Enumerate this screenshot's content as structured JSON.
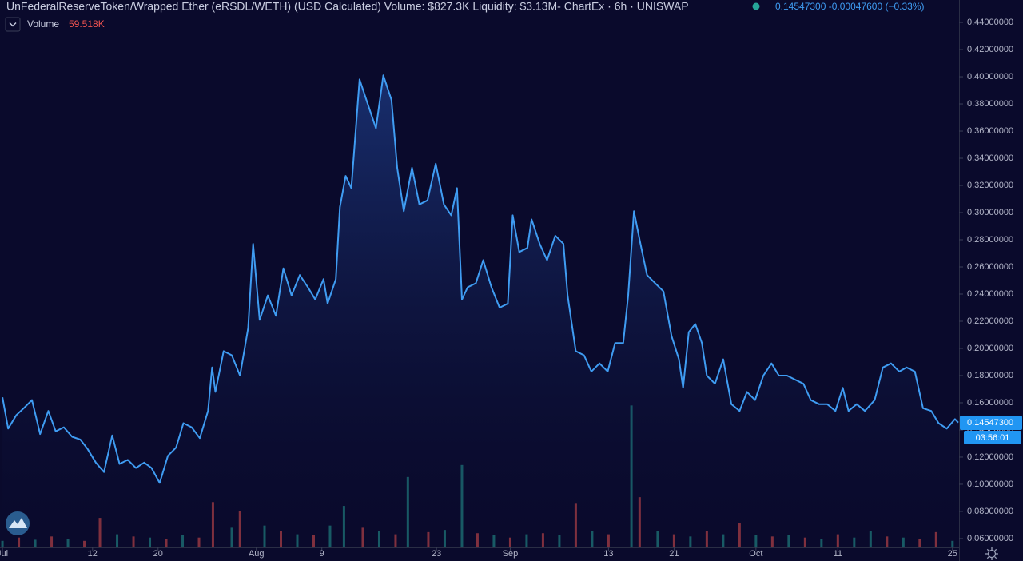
{
  "chart_data": {
    "type": "area",
    "title": "UnFederalReserveToken/Wrapped Ether (eRSDL/WETH) (USD Calculated) Volume: $827.3K Liquidity: $3.13M- ChartEx · 6h · UNISWAP",
    "last": "0.14547300",
    "change": "-0.00047600",
    "change_pct": "(−0.33%)",
    "countdown": "03:56:01",
    "xlim": [
      -0.3,
      116.8
    ],
    "xticks": [
      {
        "value": 0,
        "label": "Jul"
      },
      {
        "value": 11,
        "label": "12"
      },
      {
        "value": 19,
        "label": "20"
      },
      {
        "value": 31,
        "label": "Aug"
      },
      {
        "value": 39,
        "label": "9"
      },
      {
        "value": 53,
        "label": "23"
      },
      {
        "value": 62,
        "label": "Sep"
      },
      {
        "value": 74,
        "label": "13"
      },
      {
        "value": 82,
        "label": "21"
      },
      {
        "value": 92,
        "label": "Oct"
      },
      {
        "value": 102,
        "label": "11"
      },
      {
        "value": 116,
        "label": "25"
      }
    ],
    "ylim": [
      0.0535,
      0.4565
    ],
    "yticks": [
      {
        "value": 0.06,
        "label": "0.06000000"
      },
      {
        "value": 0.08,
        "label": "0.08000000"
      },
      {
        "value": 0.1,
        "label": "0.10000000"
      },
      {
        "value": 0.12,
        "label": "0.12000000"
      },
      {
        "value": 0.14,
        "label": "0.14000000"
      },
      {
        "value": 0.16,
        "label": "0.16000000"
      },
      {
        "value": 0.18,
        "label": "0.18000000"
      },
      {
        "value": 0.2,
        "label": "0.20000000"
      },
      {
        "value": 0.22,
        "label": "0.22000000"
      },
      {
        "value": 0.24,
        "label": "0.24000000"
      },
      {
        "value": 0.26,
        "label": "0.26000000"
      },
      {
        "value": 0.28,
        "label": "0.28000000"
      },
      {
        "value": 0.3,
        "label": "0.30000000"
      },
      {
        "value": 0.32,
        "label": "0.32000000"
      },
      {
        "value": 0.34,
        "label": "0.34000000"
      },
      {
        "value": 0.36,
        "label": "0.36000000"
      },
      {
        "value": 0.38,
        "label": "0.38000000"
      },
      {
        "value": 0.4,
        "label": "0.40000000"
      },
      {
        "value": 0.42,
        "label": "0.42000000"
      },
      {
        "value": 0.44,
        "label": "0.44000000"
      }
    ],
    "series": [
      {
        "color": "#3f9cf2",
        "x": [
          0,
          0.7,
          1.7,
          2.6,
          3.6,
          4.6,
          5.6,
          6.5,
          7.5,
          8.5,
          9.5,
          10.4,
          11.4,
          12.4,
          13.4,
          14.3,
          15.3,
          16.3,
          17.3,
          18.2,
          19.2,
          20.2,
          21.2,
          22.1,
          23.1,
          24.1,
          25.1,
          25.6,
          26,
          27,
          28,
          29,
          30,
          30.6,
          31.4,
          32.4,
          33.4,
          34.3,
          35.3,
          36.3,
          37.3,
          38.2,
          39.2,
          39.7,
          40.7,
          41.2,
          41.9,
          42.6,
          43.6,
          44.6,
          45.6,
          46.5,
          47.5,
          48.2,
          49,
          50,
          50.9,
          51.9,
          52.9,
          53.9,
          54.8,
          55.5,
          56.1,
          56.8,
          57.8,
          58.7,
          59.7,
          60.7,
          61.7,
          62.3,
          63.1,
          64.1,
          64.6,
          65.6,
          66.5,
          67.5,
          68.5,
          69,
          70,
          71,
          71.9,
          72.9,
          73.9,
          74.8,
          75.8,
          76.4,
          77.1,
          77.8,
          78.7,
          79.7,
          80.7,
          81.7,
          82.6,
          83.1,
          83.8,
          84.6,
          85.4,
          86,
          87,
          88,
          89,
          90,
          90.9,
          91.9,
          92.9,
          93.9,
          94.8,
          95.8,
          96.8,
          97.8,
          98.7,
          99.7,
          100.7,
          101.7,
          102.6,
          103.3,
          104.3,
          105.3,
          106.5,
          107.5,
          108.5,
          109.5,
          110.4,
          111.4,
          112.4,
          113.4,
          114.3,
          115.3,
          116.3,
          116.7
        ],
        "values": [
          0.164,
          0.141,
          0.151,
          0.156,
          0.162,
          0.137,
          0.154,
          0.139,
          0.142,
          0.135,
          0.133,
          0.126,
          0.116,
          0.109,
          0.136,
          0.115,
          0.118,
          0.112,
          0.116,
          0.112,
          0.101,
          0.121,
          0.127,
          0.145,
          0.142,
          0.134,
          0.154,
          0.186,
          0.168,
          0.198,
          0.195,
          0.18,
          0.215,
          0.277,
          0.221,
          0.239,
          0.224,
          0.259,
          0.239,
          0.254,
          0.245,
          0.236,
          0.251,
          0.233,
          0.251,
          0.304,
          0.327,
          0.318,
          0.398,
          0.38,
          0.362,
          0.401,
          0.383,
          0.333,
          0.301,
          0.333,
          0.306,
          0.309,
          0.336,
          0.306,
          0.298,
          0.318,
          0.236,
          0.245,
          0.248,
          0.265,
          0.245,
          0.23,
          0.233,
          0.298,
          0.271,
          0.274,
          0.295,
          0.277,
          0.265,
          0.283,
          0.277,
          0.239,
          0.198,
          0.195,
          0.183,
          0.189,
          0.183,
          0.204,
          0.204,
          0.239,
          0.301,
          0.28,
          0.254,
          0.248,
          0.242,
          0.209,
          0.192,
          0.171,
          0.212,
          0.218,
          0.204,
          0.18,
          0.174,
          0.192,
          0.159,
          0.154,
          0.168,
          0.162,
          0.18,
          0.189,
          0.18,
          0.18,
          0.177,
          0.174,
          0.162,
          0.159,
          0.159,
          0.154,
          0.171,
          0.154,
          0.159,
          0.154,
          0.162,
          0.186,
          0.189,
          0.183,
          0.186,
          0.183,
          0.156,
          0.154,
          0.145,
          0.141,
          0.148,
          0.14547
        ]
      }
    ],
    "volume": {
      "name": "Volume",
      "last_label": "59.518K",
      "vlim": [
        0,
        1500
      ],
      "x": [
        0,
        2,
        4,
        6,
        8,
        10,
        11.9,
        14,
        16,
        18,
        20,
        22,
        24,
        25.7,
        28,
        29,
        32,
        34,
        36,
        38,
        40,
        41.7,
        44,
        46,
        48,
        49.5,
        52,
        54,
        56.1,
        58,
        60,
        62,
        64,
        66,
        68,
        70,
        72,
        74,
        76.8,
        77.8,
        80,
        82,
        84,
        86,
        88,
        90,
        92,
        94,
        96,
        98,
        100,
        102,
        104,
        106,
        108,
        110,
        112,
        114,
        116
      ],
      "values": [
        60,
        90,
        70,
        100,
        80,
        60,
        270,
        120,
        100,
        90,
        80,
        110,
        90,
        415,
        180,
        330,
        200,
        150,
        120,
        110,
        200,
        380,
        180,
        150,
        120,
        645,
        140,
        160,
        755,
        130,
        110,
        90,
        120,
        130,
        110,
        400,
        150,
        120,
        1300,
        460,
        150,
        120,
        100,
        150,
        120,
        220,
        110,
        100,
        110,
        90,
        80,
        120,
        90,
        150,
        100,
        90,
        80,
        140,
        60
      ],
      "colors": [
        "#26a69a",
        "#ef5350",
        "#26a69a",
        "#ef5350",
        "#26a69a",
        "#ef5350",
        "#ef5350",
        "#26a69a",
        "#ef5350",
        "#26a69a",
        "#ef5350",
        "#26a69a",
        "#ef5350",
        "#ef5350",
        "#26a69a",
        "#ef5350",
        "#26a69a",
        "#ef5350",
        "#26a69a",
        "#ef5350",
        "#26a69a",
        "#26a69a",
        "#ef5350",
        "#26a69a",
        "#ef5350",
        "#26a69a",
        "#ef5350",
        "#26a69a",
        "#26a69a",
        "#ef5350",
        "#26a69a",
        "#ef5350",
        "#26a69a",
        "#ef5350",
        "#26a69a",
        "#ef5350",
        "#26a69a",
        "#ef5350",
        "#26a69a",
        "#ef5350",
        "#26a69a",
        "#ef5350",
        "#26a69a",
        "#ef5350",
        "#26a69a",
        "#ef5350",
        "#26a69a",
        "#ef5350",
        "#26a69a",
        "#ef5350",
        "#26a69a",
        "#ef5350",
        "#26a69a",
        "#26a69a",
        "#ef5350",
        "#26a69a",
        "#ef5350",
        "#ef5350",
        "#26a69a"
      ]
    }
  }
}
